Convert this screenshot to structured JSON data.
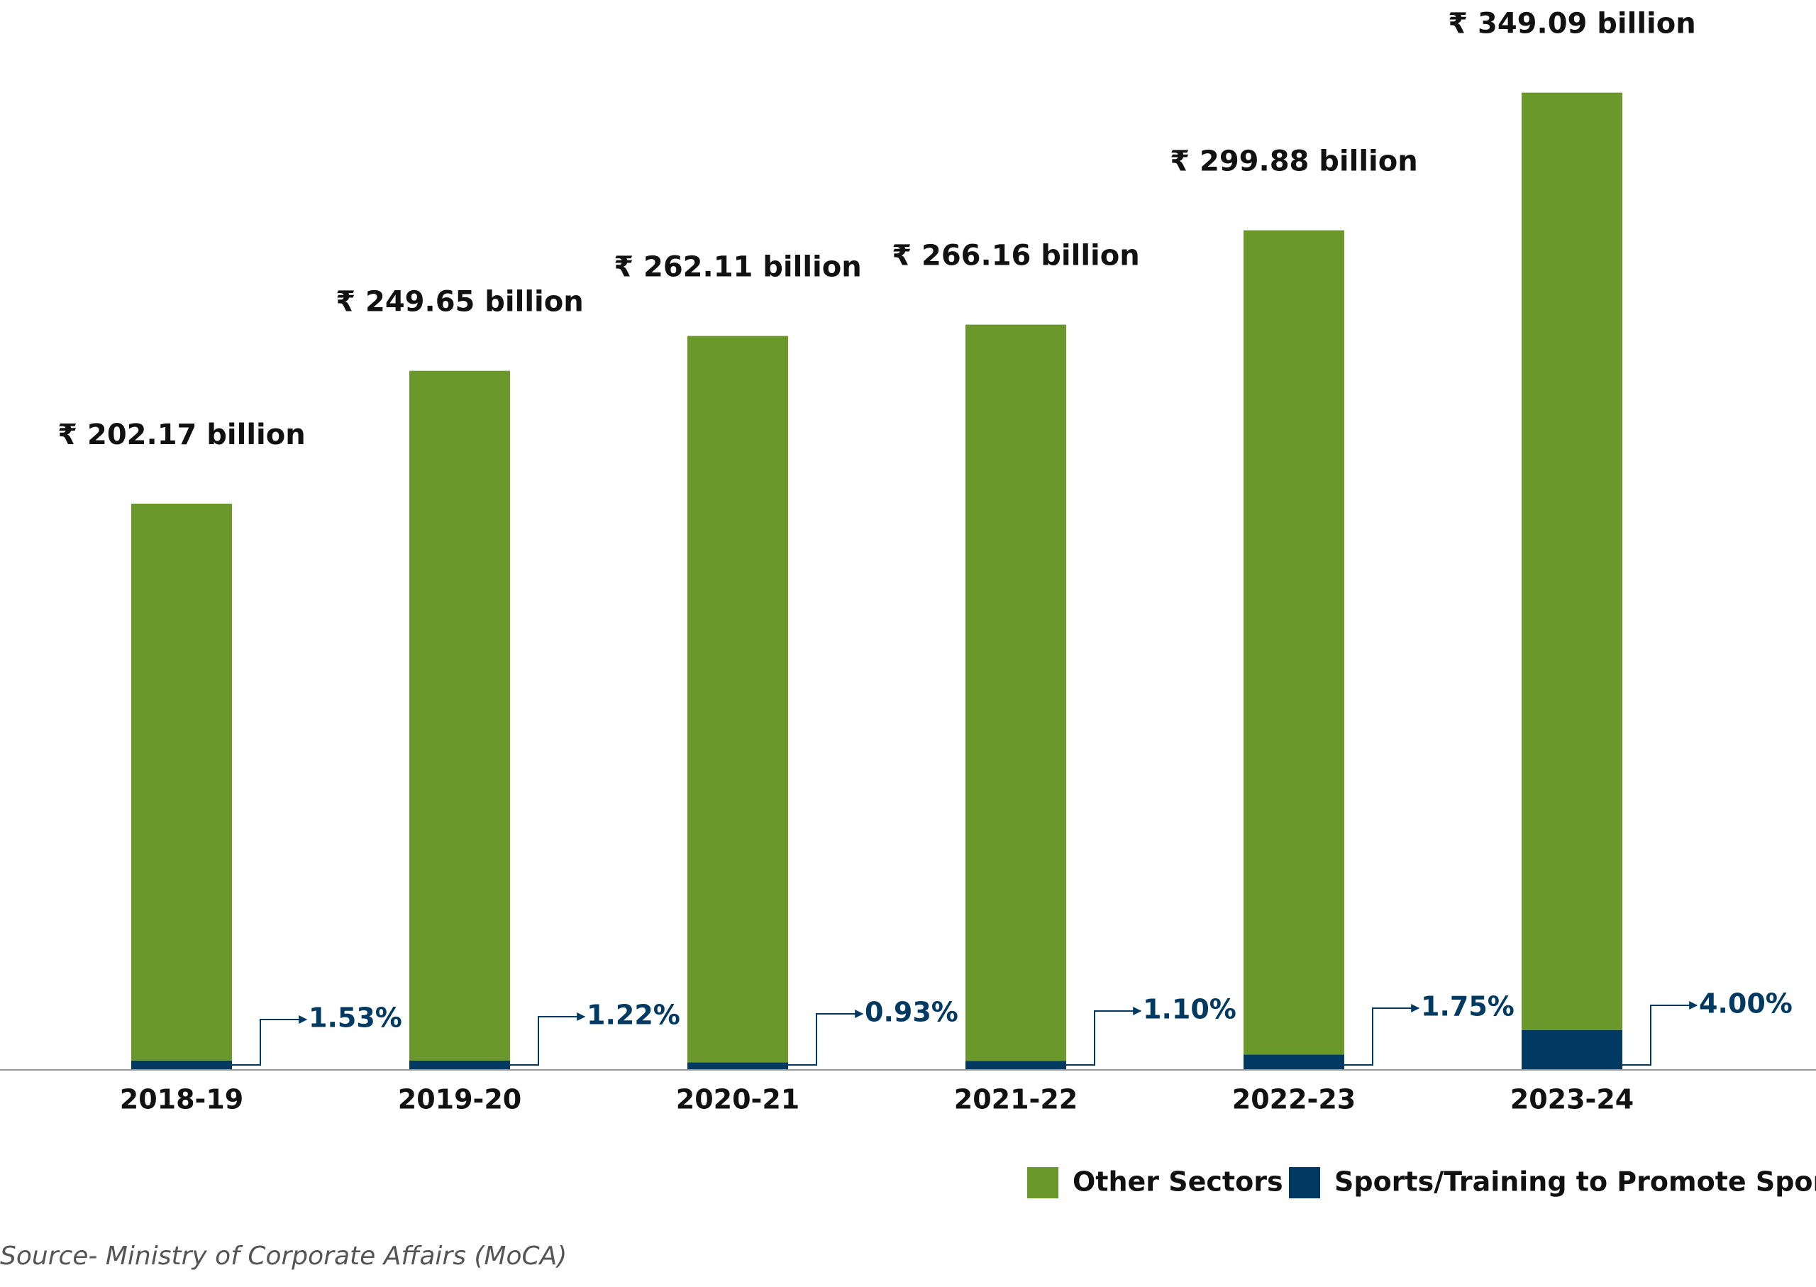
{
  "chart_data": {
    "type": "stacked_bar",
    "categories": [
      "2018-19",
      "2019-20",
      "2020-21",
      "2021-22",
      "2022-23",
      "2023-24"
    ],
    "series": [
      {
        "name": "Sports/Training to Promote Sports",
        "color": "#003a63",
        "values": [
          3.09,
          3.05,
          2.44,
          2.93,
          5.25,
          13.96
        ]
      },
      {
        "name": "Other Sectors",
        "color": "#6b982b",
        "values": [
          199.08,
          246.6,
          259.67,
          263.23,
          294.63,
          335.13
        ]
      }
    ],
    "totals": {
      "values": [
        202.17,
        249.65,
        262.11,
        266.16,
        299.88,
        349.09
      ],
      "value_labels": [
        "₹ 202.17 billion",
        "₹ 249.65 billion",
        "₹ 262.11 billion",
        "₹ 266.16 billion",
        "₹ 299.88 billion",
        "₹ 349.09 billion"
      ]
    },
    "shares": {
      "values": [
        1.53,
        1.22,
        0.93,
        1.1,
        1.75,
        4.0
      ],
      "value_labels": [
        "1.53%",
        "1.22%",
        "0.93%",
        "1.10%",
        "1.75%",
        "4.00%"
      ]
    },
    "ylim": [
      0,
      350
    ],
    "source": "Source- Ministry of Corporate Affairs (MoCA)"
  }
}
